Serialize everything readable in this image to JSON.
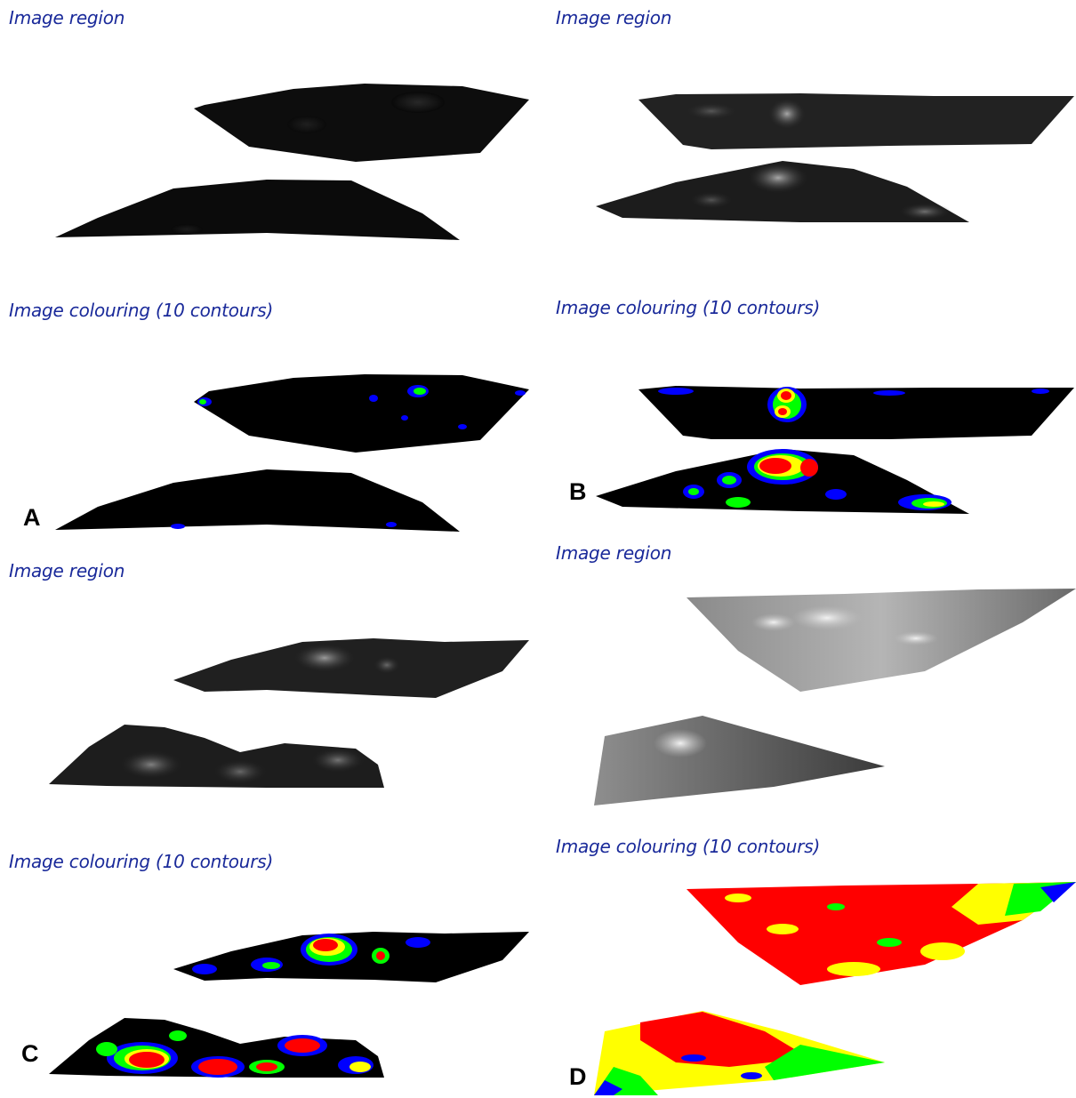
{
  "panels": [
    {
      "label": "A",
      "region_caption": "Image region",
      "colouring_caption": "Image colouring (10 contours)"
    },
    {
      "label": "B",
      "region_caption": "Image region",
      "colouring_caption": "Image colouring (10 contours)"
    },
    {
      "label": "C",
      "region_caption": "Image region",
      "colouring_caption": "Image colouring (10 contours)"
    },
    {
      "label": "D",
      "region_caption": "Image region",
      "colouring_caption": "Image colouring (10 contours)"
    }
  ],
  "contour_colors": {
    "background": "#000000",
    "low": "#0000ff",
    "mid": "#00ff00",
    "high": "#ffff00",
    "peak": "#ff0000"
  }
}
